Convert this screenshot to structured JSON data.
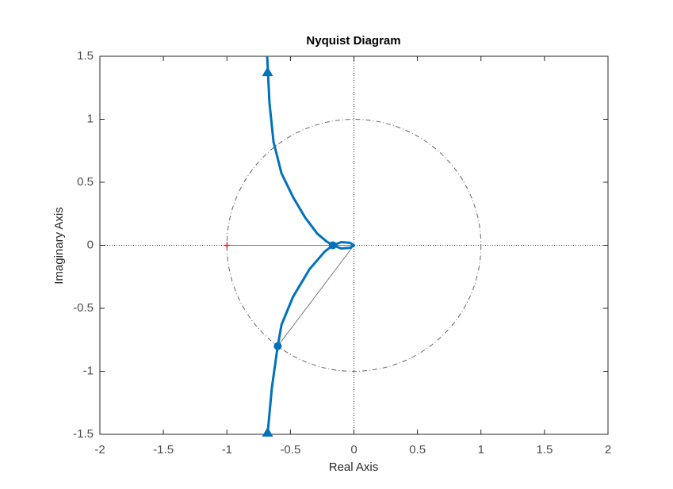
{
  "chart_data": {
    "type": "line",
    "title": "Nyquist Diagram",
    "x_label": "Real Axis",
    "y_label": "Imaginary Axis",
    "x": [
      -0.683,
      -0.665,
      -0.633,
      -0.57,
      -0.478,
      -0.384,
      -0.29,
      -0.215,
      -0.166,
      -0.1,
      -0.03,
      0,
      -0.03,
      -0.1,
      -0.166,
      -0.23,
      -0.35,
      -0.48,
      -0.57,
      -0.6,
      -0.646,
      -0.68
    ],
    "values": [
      1.5,
      1.13,
      0.82,
      0.57,
      0.38,
      0.22,
      0.094,
      0.03,
      0,
      0.025,
      0.02,
      0,
      -0.02,
      -0.025,
      0,
      -0.05,
      -0.19,
      -0.41,
      -0.63,
      -0.8,
      -1.13,
      -1.5
    ],
    "color": "#0072bd",
    "points": [
      {
        "x": -0.166,
        "y": 0
      },
      {
        "x": -0.6,
        "y": -0.8
      }
    ],
    "arrows": [
      {
        "x": -0.68,
        "y": 1.38
      },
      {
        "x": -0.68,
        "y": -1.48
      }
    ],
    "critical_point": {
      "x": -1,
      "y": 0
    },
    "unit_circle": true,
    "xlim": [
      -2,
      2
    ],
    "xticks": [
      -2,
      -1.5,
      -1,
      -0.5,
      0,
      0.5,
      1,
      1.5,
      2
    ],
    "ylim": [
      -1.5,
      1.5
    ],
    "yticks": [
      -1.5,
      -1,
      -0.5,
      0,
      0.5,
      1,
      1.5
    ],
    "grid": false
  }
}
